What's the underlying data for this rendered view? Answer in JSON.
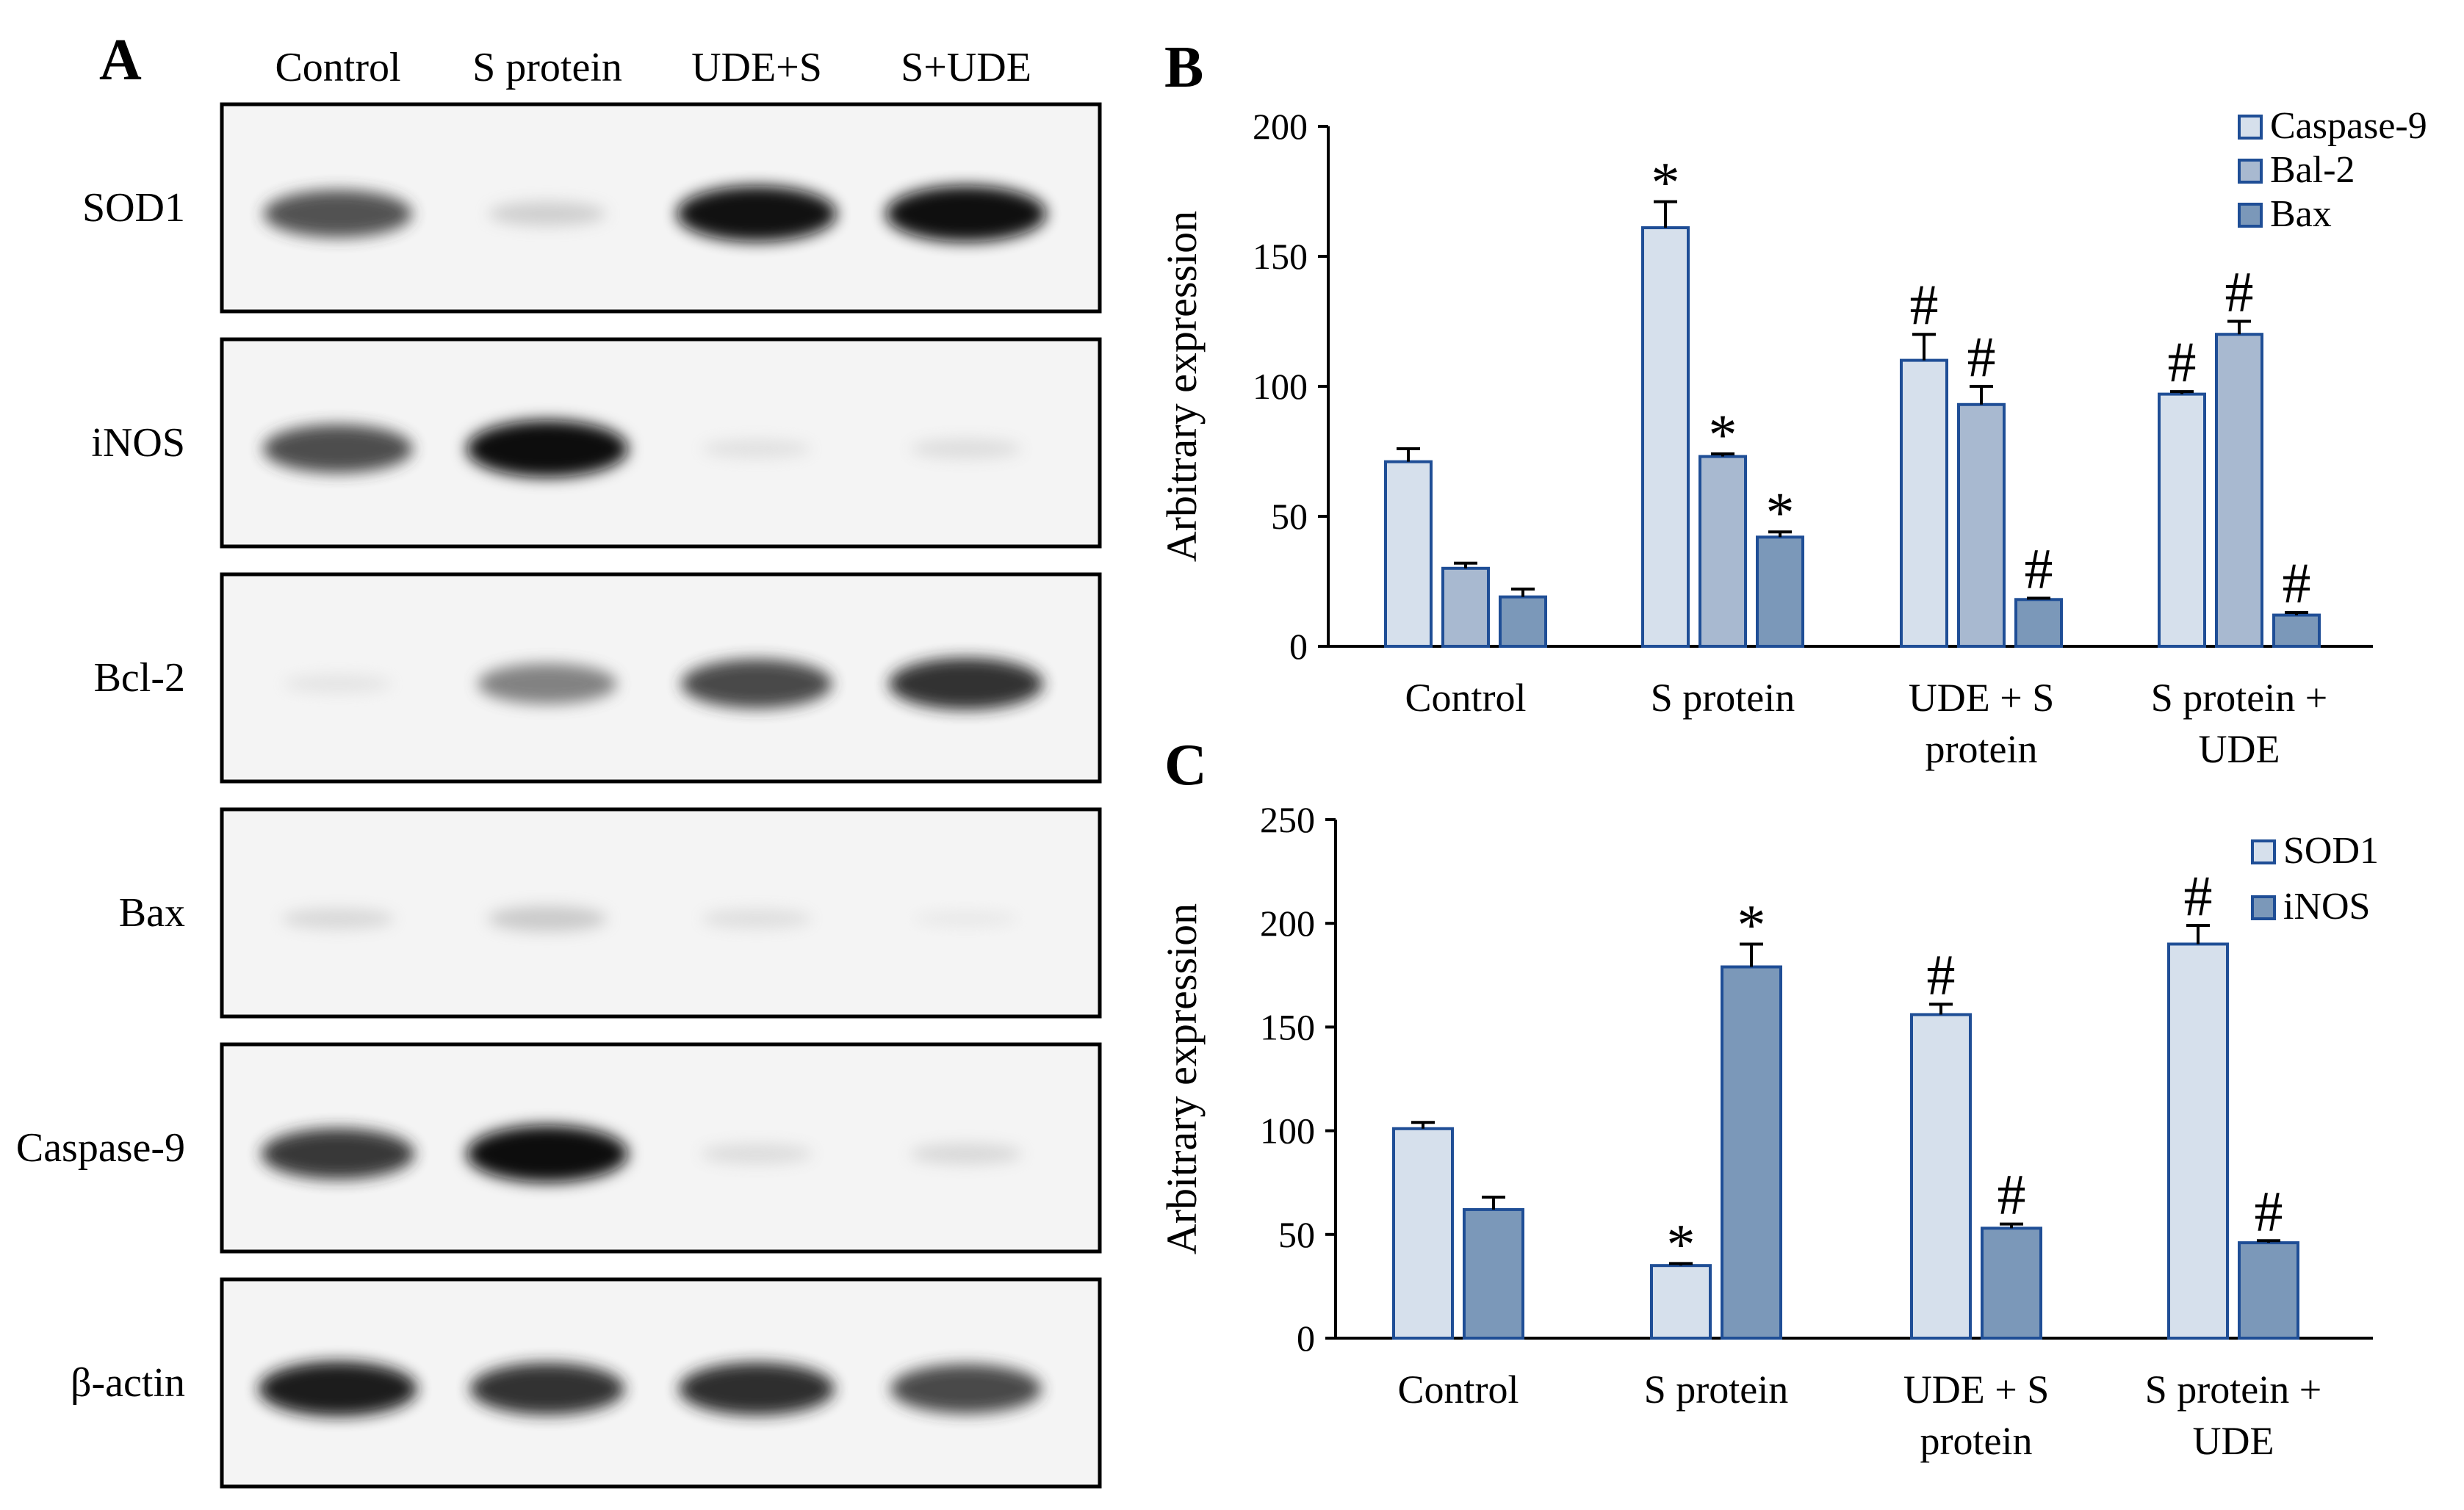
{
  "panels": {
    "a": {
      "letter": "A",
      "lanes": [
        "Control",
        "S protein",
        "UDE+S",
        "S+UDE"
      ],
      "blots": [
        {
          "label": "SOD1",
          "bands": [
            0.78,
            0.25,
            0.97,
            0.98
          ]
        },
        {
          "label": "iNOS",
          "bands": [
            0.8,
            1.0,
            0.12,
            0.15
          ]
        },
        {
          "label": "Bcl-2",
          "bands": [
            0.1,
            0.62,
            0.82,
            0.88
          ]
        },
        {
          "label": "Bax",
          "bands": [
            0.18,
            0.28,
            0.14,
            0.05
          ]
        },
        {
          "label": "Caspase-9",
          "bands": [
            0.86,
            1.0,
            0.16,
            0.18
          ]
        },
        {
          "label": "β-actin",
          "bands": [
            0.95,
            0.88,
            0.9,
            0.82
          ]
        }
      ]
    },
    "b": {
      "letter": "B"
    },
    "c": {
      "letter": "C"
    }
  },
  "chart_data": [
    {
      "panel": "B",
      "type": "bar",
      "categories": [
        [
          "Control"
        ],
        [
          "S protein"
        ],
        [
          "UDE + S",
          "protein"
        ],
        [
          "S protein +",
          "UDE"
        ]
      ],
      "ylabel": "Arbitrary expression",
      "ylim": [
        0,
        200
      ],
      "yticks": [
        0,
        50,
        100,
        150,
        200
      ],
      "legend_position": "top-right",
      "grid": false,
      "series": [
        {
          "name": "Caspase-9",
          "color": "#d6e0ec",
          "values": [
            71,
            161,
            110,
            97
          ],
          "errors": [
            5,
            10,
            10,
            1
          ],
          "marks": [
            "",
            "*",
            "#",
            "#"
          ]
        },
        {
          "name": "Bal-2",
          "color": "#a8b9d0",
          "values": [
            30,
            73,
            93,
            120
          ],
          "errors": [
            2,
            1,
            7,
            5
          ],
          "marks": [
            "",
            "*",
            "#",
            "#"
          ]
        },
        {
          "name": "Bax",
          "color": "#7b98b9",
          "values": [
            19,
            42,
            18,
            12
          ],
          "errors": [
            3,
            2,
            0.5,
            1
          ],
          "marks": [
            "",
            "*",
            "#",
            "#"
          ]
        }
      ]
    },
    {
      "panel": "C",
      "type": "bar",
      "categories": [
        [
          "Control"
        ],
        [
          "S protein"
        ],
        [
          "UDE + S",
          "protein"
        ],
        [
          "S protein +",
          "UDE"
        ]
      ],
      "ylabel": "Arbitrary expression",
      "ylim": [
        0,
        250
      ],
      "yticks": [
        0,
        50,
        100,
        150,
        200,
        250
      ],
      "legend_position": "top-right",
      "grid": false,
      "series": [
        {
          "name": "SOD1",
          "color": "#d6e0ec",
          "values": [
            101,
            35,
            156,
            190
          ],
          "errors": [
            3,
            1,
            5,
            9
          ],
          "marks": [
            "",
            "*",
            "#",
            "#"
          ]
        },
        {
          "name": "iNOS",
          "color": "#7b98b9",
          "values": [
            62,
            179,
            53,
            46
          ],
          "errors": [
            6,
            11,
            2,
            1
          ],
          "marks": [
            "",
            "*",
            "#",
            "#"
          ]
        }
      ]
    }
  ]
}
